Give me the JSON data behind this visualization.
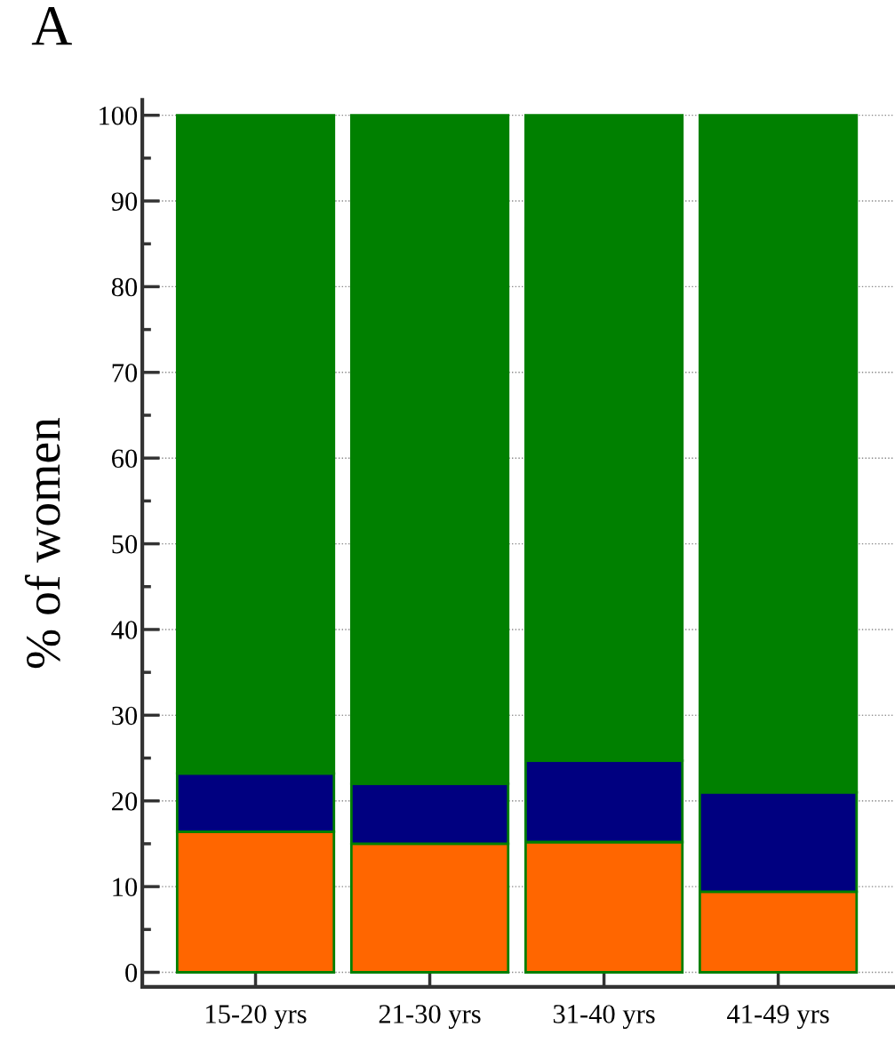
{
  "chart_data": {
    "type": "bar",
    "title": "A",
    "ylabel": "% of women",
    "categories": [
      "15-20 yrs",
      "21-30 yrs",
      "31-40 yrs",
      "41-49 yrs"
    ],
    "stacked": true,
    "series": [
      {
        "color": "#ff6600",
        "values": [
          16.4,
          15.0,
          15.2,
          9.4
        ]
      },
      {
        "color": "#000080",
        "values": [
          6.8,
          7.0,
          9.5,
          11.6
        ]
      },
      {
        "color": "#008000",
        "values": [
          76.8,
          78.0,
          75.3,
          79.0
        ]
      }
    ],
    "ylim": [
      -1.7,
      101.8
    ],
    "yticks": [
      0,
      10,
      20,
      30,
      40,
      50,
      60,
      70,
      80,
      90,
      100
    ],
    "grid": "y",
    "legend": false
  }
}
